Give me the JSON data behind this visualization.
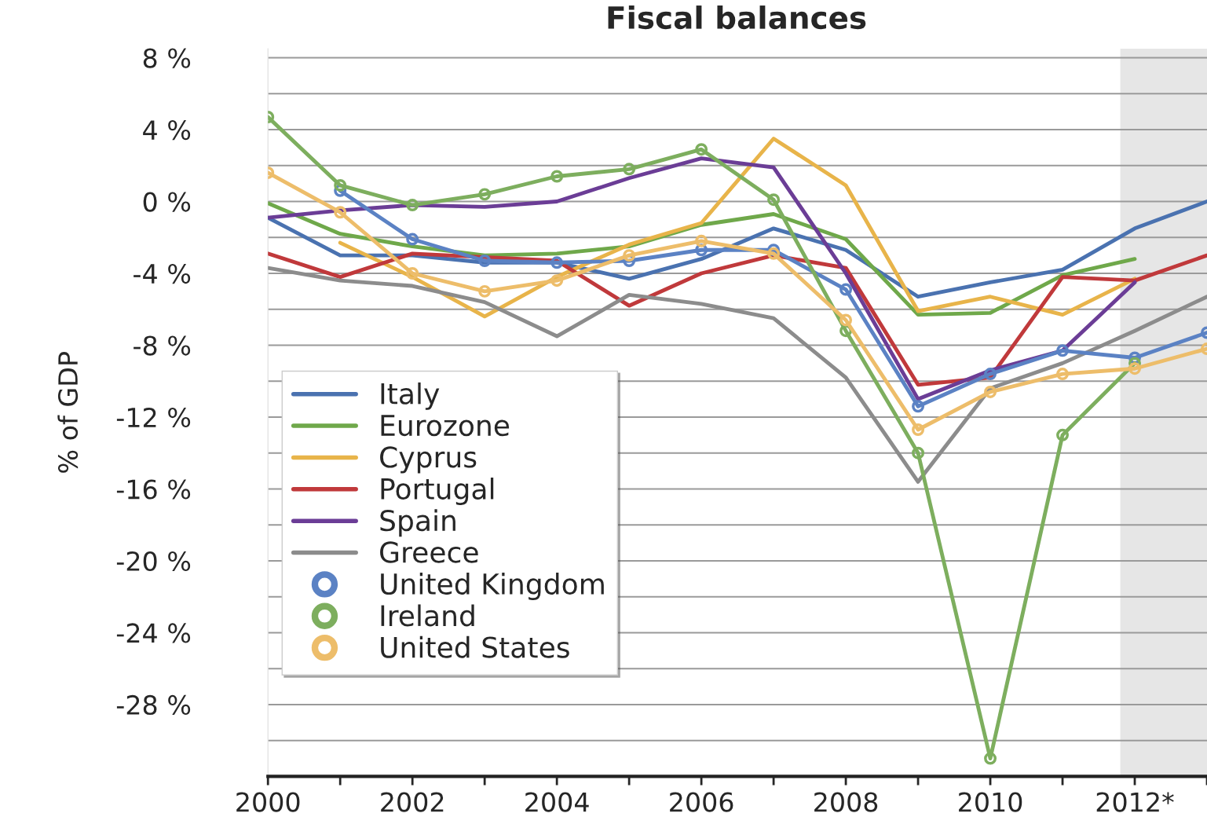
{
  "chart_data": {
    "type": "line",
    "title": "Fiscal balances",
    "ylabel": "% of GDP",
    "x": [
      2000,
      2001,
      2002,
      2003,
      2004,
      2005,
      2006,
      2007,
      2008,
      2009,
      2010,
      2011,
      2012,
      2013
    ],
    "series": [
      {
        "name": "Italy",
        "color": "#4a72b0",
        "values": [
          -0.9,
          -3.0,
          -3.0,
          -3.4,
          -3.4,
          -4.3,
          -3.2,
          -1.5,
          -2.7,
          -5.3,
          -4.5,
          -3.8,
          -1.5,
          0
        ]
      },
      {
        "name": "Eurozone",
        "color": "#6fa84a",
        "values": [
          -0.1,
          -1.8,
          -2.5,
          -3.0,
          -2.9,
          -2.5,
          -1.3,
          -0.7,
          -2.1,
          -6.3,
          -6.2,
          -4.1,
          -3.2,
          null
        ]
      },
      {
        "name": "Cyprus",
        "color": "#e8b44a",
        "values": [
          null,
          -2.3,
          -4.2,
          -6.4,
          -4.2,
          -2.4,
          -1.2,
          3.5,
          0.9,
          -6.1,
          -5.3,
          -6.3,
          -4.3,
          null
        ]
      },
      {
        "name": "Portugal",
        "color": "#c0393b",
        "values": [
          -2.9,
          -4.2,
          -2.9,
          -3.1,
          -3.3,
          -5.8,
          -4.0,
          -3.0,
          -3.7,
          -10.2,
          -9.8,
          -4.2,
          -4.4,
          -3.0
        ]
      },
      {
        "name": "Spain",
        "color": "#6b3d96",
        "values": [
          -0.9,
          -0.5,
          -0.2,
          -0.3,
          0.0,
          1.3,
          2.4,
          1.9,
          -4.0,
          -11.0,
          -9.4,
          -8.3,
          -4.5,
          null
        ]
      },
      {
        "name": "Greece",
        "color": "#8c8c8c",
        "values": [
          -3.7,
          -4.4,
          -4.7,
          -5.6,
          -7.5,
          -5.2,
          -5.7,
          -6.5,
          -9.8,
          -15.6,
          -10.4,
          -9.0,
          -7.2,
          -5.3
        ]
      },
      {
        "name": "United Kingdom",
        "color": "#5b82c4",
        "marker": "circle",
        "values": [
          null,
          0.6,
          -2.1,
          -3.3,
          -3.4,
          -3.3,
          -2.7,
          -2.7,
          -4.9,
          -11.4,
          -9.6,
          -8.3,
          -8.7,
          -7.3
        ]
      },
      {
        "name": "Ireland",
        "color": "#7dae5e",
        "marker": "circle",
        "values": [
          4.7,
          0.9,
          -0.2,
          0.4,
          1.4,
          1.8,
          2.9,
          0.1,
          -7.2,
          -14.0,
          -31.0,
          -13.0,
          -9.0,
          null
        ]
      },
      {
        "name": "United States",
        "color": "#edbd6a",
        "marker": "circle",
        "values": [
          1.6,
          -0.6,
          -4.0,
          -5.0,
          -4.4,
          -3.0,
          -2.2,
          -2.9,
          -6.6,
          -12.7,
          -10.6,
          -9.6,
          -9.3,
          -8.2
        ]
      }
    ],
    "xlim": [
      2000,
      2013
    ],
    "ylim": [
      -32,
      8.5
    ],
    "xticks": [
      {
        "value": 2000,
        "label": "2000"
      },
      {
        "value": 2001,
        "label": null
      },
      {
        "value": 2002,
        "label": "2002"
      },
      {
        "value": 2003,
        "label": null
      },
      {
        "value": 2004,
        "label": "2004"
      },
      {
        "value": 2005,
        "label": null
      },
      {
        "value": 2006,
        "label": "2006"
      },
      {
        "value": 2007,
        "label": null
      },
      {
        "value": 2008,
        "label": "2008"
      },
      {
        "value": 2009,
        "label": null
      },
      {
        "value": 2010,
        "label": "2010"
      },
      {
        "value": 2011,
        "label": null
      },
      {
        "value": 2012,
        "label": "2012*"
      },
      {
        "value": 2013,
        "label": null
      }
    ],
    "yticks": [
      {
        "value": 8,
        "label": "8 %"
      },
      {
        "value": 6,
        "label": null
      },
      {
        "value": 4,
        "label": "4 %"
      },
      {
        "value": 2,
        "label": null
      },
      {
        "value": 0,
        "label": "0 %"
      },
      {
        "value": -2,
        "label": null
      },
      {
        "value": -4,
        "label": "-4 %"
      },
      {
        "value": -6,
        "label": null
      },
      {
        "value": -8,
        "label": "-8 %"
      },
      {
        "value": -10,
        "label": null
      },
      {
        "value": -12,
        "label": "-12 %"
      },
      {
        "value": -14,
        "label": null
      },
      {
        "value": -16,
        "label": "-16 %"
      },
      {
        "value": -18,
        "label": null
      },
      {
        "value": -20,
        "label": "-20 %"
      },
      {
        "value": -22,
        "label": null
      },
      {
        "value": -24,
        "label": "-24 %"
      },
      {
        "value": -26,
        "label": null
      },
      {
        "value": -28,
        "label": "-28 %"
      },
      {
        "value": -30,
        "label": null
      }
    ],
    "bands": [
      {
        "axis": "x",
        "from": 2011.8,
        "to": 2013,
        "color": "#e6e6e6"
      }
    ],
    "grid": "y",
    "legend": "bottom left"
  }
}
